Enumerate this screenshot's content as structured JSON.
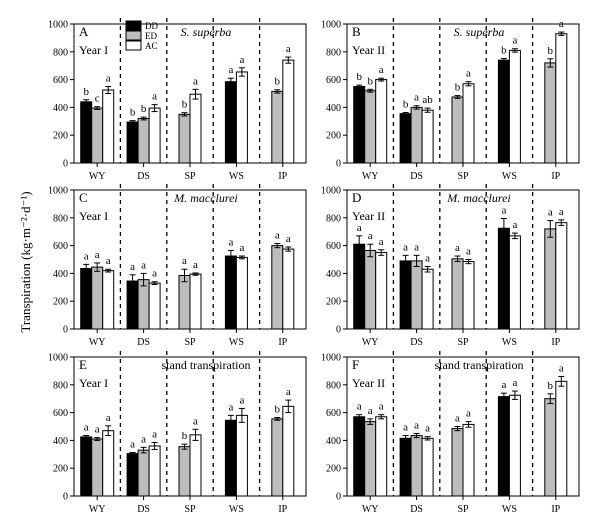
{
  "figure": {
    "ylabel": "Transpiration (kg·m⁻²·d⁻¹)",
    "legend": [
      "DD",
      "ED",
      "AC"
    ]
  },
  "chart_data": [
    {
      "type": "bar",
      "panel": "A",
      "year": "Year I",
      "title": "S. superba",
      "categories": [
        "WY",
        "DS",
        "SP",
        "WS",
        "IP"
      ],
      "ylim": [
        0,
        1000
      ],
      "yticks": [
        0,
        200,
        400,
        600,
        800,
        1000
      ],
      "series": [
        {
          "name": "DD",
          "values": [
            440,
            295,
            null,
            585,
            null
          ],
          "errors": [
            15,
            10,
            null,
            25,
            null
          ],
          "letters": [
            "b",
            "b",
            "",
            "a",
            ""
          ]
        },
        {
          "name": "ED",
          "values": [
            395,
            320,
            350,
            null,
            515
          ],
          "errors": [
            10,
            10,
            12,
            null,
            12
          ],
          "letters": [
            "c",
            "b",
            "b",
            "",
            "b"
          ]
        },
        {
          "name": "AC",
          "values": [
            525,
            395,
            495,
            655,
            740
          ],
          "errors": [
            25,
            25,
            35,
            30,
            22
          ],
          "letters": [
            "a",
            "a",
            "a",
            "a",
            "a"
          ]
        }
      ]
    },
    {
      "type": "bar",
      "panel": "B",
      "year": "Year II",
      "title": "S. superba",
      "categories": [
        "WY",
        "DS",
        "SP",
        "WS",
        "IP"
      ],
      "ylim": [
        0,
        1000
      ],
      "yticks": [
        0,
        200,
        400,
        600,
        800,
        1000
      ],
      "series": [
        {
          "name": "DD",
          "values": [
            550,
            355,
            null,
            740,
            null
          ],
          "errors": [
            10,
            8,
            null,
            12,
            null
          ],
          "letters": [
            "b",
            "b",
            "",
            "b",
            ""
          ]
        },
        {
          "name": "ED",
          "values": [
            520,
            400,
            475,
            null,
            720
          ],
          "errors": [
            10,
            12,
            10,
            null,
            30
          ],
          "letters": [
            "b",
            "a",
            "b",
            "",
            "b"
          ]
        },
        {
          "name": "AC",
          "values": [
            600,
            380,
            570,
            810,
            930
          ],
          "errors": [
            10,
            15,
            15,
            12,
            12
          ],
          "letters": [
            "a",
            "ab",
            "a",
            "a",
            "a"
          ]
        }
      ]
    },
    {
      "type": "bar",
      "panel": "C",
      "year": "Year I",
      "title": "M. macclurei",
      "categories": [
        "WY",
        "DS",
        "SP",
        "WS",
        "IP"
      ],
      "ylim": [
        0,
        1000
      ],
      "yticks": [
        0,
        200,
        400,
        600,
        800,
        1000
      ],
      "series": [
        {
          "name": "DD",
          "values": [
            435,
            345,
            null,
            525,
            null
          ],
          "errors": [
            30,
            45,
            null,
            40,
            null
          ],
          "letters": [
            "a",
            "a",
            "",
            "a",
            ""
          ]
        },
        {
          "name": "ED",
          "values": [
            445,
            355,
            385,
            null,
            600
          ],
          "errors": [
            30,
            45,
            45,
            null,
            15
          ],
          "letters": [
            "a",
            "a",
            "a",
            "",
            "a"
          ]
        },
        {
          "name": "AC",
          "values": [
            420,
            330,
            395,
            515,
            575
          ],
          "errors": [
            10,
            10,
            8,
            10,
            15
          ],
          "letters": [
            "a",
            "a",
            "a",
            "a",
            "a"
          ]
        }
      ]
    },
    {
      "type": "bar",
      "panel": "D",
      "year": "Year II",
      "title": "M. macclurei",
      "categories": [
        "WY",
        "DS",
        "SP",
        "WS",
        "IP"
      ],
      "ylim": [
        0,
        1000
      ],
      "yticks": [
        0,
        200,
        400,
        600,
        800,
        1000
      ],
      "series": [
        {
          "name": "DD",
          "values": [
            610,
            490,
            null,
            725,
            null
          ],
          "errors": [
            60,
            40,
            null,
            70,
            null
          ],
          "letters": [
            "a",
            "a",
            "",
            "a",
            ""
          ]
        },
        {
          "name": "ED",
          "values": [
            565,
            490,
            505,
            null,
            720
          ],
          "errors": [
            45,
            40,
            20,
            null,
            60
          ],
          "letters": [
            "a",
            "a",
            "a",
            "",
            "a"
          ]
        },
        {
          "name": "AC",
          "values": [
            550,
            430,
            485,
            670,
            765
          ],
          "errors": [
            20,
            20,
            15,
            20,
            20
          ],
          "letters": [
            "a",
            "a",
            "a",
            "a",
            "a"
          ]
        }
      ]
    },
    {
      "type": "bar",
      "panel": "E",
      "year": "Year I",
      "title": "stand transpiration",
      "categories": [
        "WY",
        "DS",
        "SP",
        "WS",
        "IP"
      ],
      "ylim": [
        0,
        1000
      ],
      "yticks": [
        0,
        200,
        400,
        600,
        800,
        1000
      ],
      "series": [
        {
          "name": "DD",
          "values": [
            425,
            305,
            null,
            545,
            null
          ],
          "errors": [
            10,
            8,
            null,
            35,
            null
          ],
          "letters": [
            "a",
            "a",
            "",
            "a",
            ""
          ]
        },
        {
          "name": "ED",
          "values": [
            410,
            330,
            355,
            null,
            555
          ],
          "errors": [
            10,
            20,
            18,
            null,
            10
          ],
          "letters": [
            "a",
            "a",
            "b",
            "",
            "b"
          ]
        },
        {
          "name": "AC",
          "values": [
            470,
            360,
            440,
            580,
            645
          ],
          "errors": [
            35,
            25,
            40,
            50,
            45
          ],
          "letters": [
            "a",
            "a",
            "a",
            "a",
            "a"
          ]
        }
      ]
    },
    {
      "type": "bar",
      "panel": "F",
      "year": "Year II",
      "title": "stand transpiration",
      "categories": [
        "WY",
        "DS",
        "SP",
        "WS",
        "IP"
      ],
      "ylim": [
        0,
        1000
      ],
      "yticks": [
        0,
        200,
        400,
        600,
        800,
        1000
      ],
      "series": [
        {
          "name": "DD",
          "values": [
            570,
            415,
            null,
            715,
            null
          ],
          "errors": [
            15,
            20,
            null,
            25,
            null
          ],
          "letters": [
            "a",
            "a",
            "",
            "a",
            ""
          ]
        },
        {
          "name": "ED",
          "values": [
            535,
            435,
            485,
            null,
            700
          ],
          "errors": [
            20,
            15,
            15,
            null,
            35
          ],
          "letters": [
            "a",
            "a",
            "a",
            "",
            "b"
          ]
        },
        {
          "name": "AC",
          "values": [
            570,
            415,
            515,
            725,
            825
          ],
          "errors": [
            15,
            12,
            20,
            30,
            35
          ],
          "letters": [
            "a",
            "a",
            "a",
            "a",
            "a"
          ]
        }
      ]
    }
  ]
}
